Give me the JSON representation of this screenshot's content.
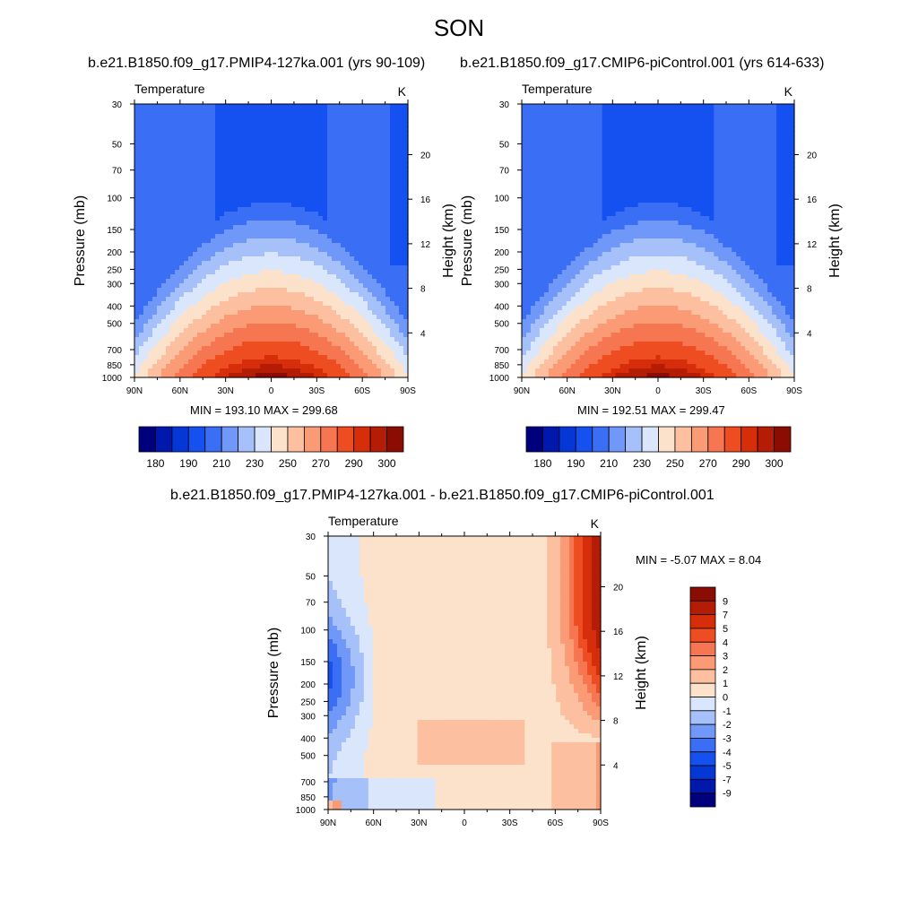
{
  "title": "SON",
  "palette": {
    "abs": [
      "#00007f",
      "#0018ab",
      "#0536d6",
      "#1550f0",
      "#3a6ef5",
      "#7098f8",
      "#a6c1fa",
      "#d9e6fc",
      "#fde2cb",
      "#fcc0a0",
      "#fa9b76",
      "#f57650",
      "#ee4d22",
      "#d62d0a",
      "#b51c06",
      "#8a0c02"
    ],
    "diff": [
      "#00007f",
      "#0018ab",
      "#0536d6",
      "#1550f0",
      "#3a6ef5",
      "#7098f8",
      "#a6c1fa",
      "#d9e6fc",
      "#fde2cb",
      "#fcc0a0",
      "#fa9b76",
      "#f57650",
      "#ee4d22",
      "#d62d0a",
      "#b51c06",
      "#8a0c02"
    ]
  },
  "chart_data": [
    {
      "type": "heatmap",
      "panel": "left",
      "title": "b.e21.B1850.f09_g17.PMIP4-127ka.001 (yrs 90-109)",
      "left_label": "Temperature",
      "right_label": "K",
      "ylabel": "Pressure (mb)",
      "ylabel_right": "Height (km)",
      "stats": "MIN = 193.10  MAX = 299.68",
      "min": 193.1,
      "max": 299.68,
      "lat_ticks": [
        "90N",
        "60N",
        "30N",
        "0",
        "30S",
        "60S",
        "90S"
      ],
      "lat_values": [
        90,
        60,
        30,
        0,
        -30,
        -60,
        -90
      ],
      "p_ticks": [
        "30",
        "50",
        "70",
        "100",
        "150",
        "200",
        "250",
        "300",
        "400",
        "500",
        "700",
        "850",
        "1000"
      ],
      "p_values": [
        30,
        50,
        70,
        100,
        150,
        200,
        250,
        300,
        400,
        500,
        700,
        850,
        1000
      ],
      "z_ticks": [
        "20",
        "16",
        "12",
        "8",
        "4"
      ],
      "z_values": [
        20,
        16,
        12,
        8,
        4
      ],
      "levels": [
        180,
        185,
        190,
        200,
        210,
        220,
        230,
        240,
        250,
        260,
        270,
        280,
        290,
        295,
        300
      ],
      "colorbar_labels": [
        "180",
        "190",
        "210",
        "230",
        "250",
        "270",
        "290",
        "300"
      ],
      "variant": 0
    },
    {
      "type": "heatmap",
      "panel": "right",
      "title": "b.e21.B1850.f09_g17.CMIP6-piControl.001 (yrs 614-633)",
      "left_label": "Temperature",
      "right_label": "K",
      "ylabel": "Pressure (mb)",
      "ylabel_right": "Height (km)",
      "stats": "MIN = 192.51  MAX = 299.47",
      "min": 192.51,
      "max": 299.47,
      "lat_ticks": [
        "90N",
        "60N",
        "30N",
        "0",
        "30S",
        "60S",
        "90S"
      ],
      "lat_values": [
        90,
        60,
        30,
        0,
        -30,
        -60,
        -90
      ],
      "p_ticks": [
        "30",
        "50",
        "70",
        "100",
        "150",
        "200",
        "250",
        "300",
        "400",
        "500",
        "700",
        "850",
        "1000"
      ],
      "p_values": [
        30,
        50,
        70,
        100,
        150,
        200,
        250,
        300,
        400,
        500,
        700,
        850,
        1000
      ],
      "z_ticks": [
        "20",
        "16",
        "12",
        "8",
        "4"
      ],
      "z_values": [
        20,
        16,
        12,
        8,
        4
      ],
      "levels": [
        180,
        185,
        190,
        200,
        210,
        220,
        230,
        240,
        250,
        260,
        270,
        280,
        290,
        295,
        300
      ],
      "colorbar_labels": [
        "180",
        "190",
        "210",
        "230",
        "250",
        "270",
        "290",
        "300"
      ],
      "variant": 1
    },
    {
      "type": "heatmap",
      "panel": "diff",
      "title": "b.e21.B1850.f09_g17.PMIP4-127ka.001 - b.e21.B1850.f09_g17.CMIP6-piControl.001",
      "left_label": "Temperature",
      "right_label": "K",
      "ylabel": "Pressure (mb)",
      "ylabel_right": "Height (km)",
      "stats": "MIN =  -5.07  MAX =   8.04",
      "min": -5.07,
      "max": 8.04,
      "lat_ticks": [
        "90N",
        "60N",
        "30N",
        "0",
        "30S",
        "60S",
        "90S"
      ],
      "lat_values": [
        90,
        60,
        30,
        0,
        -30,
        -60,
        -90
      ],
      "p_ticks": [
        "30",
        "50",
        "70",
        "100",
        "150",
        "200",
        "250",
        "300",
        "400",
        "500",
        "700",
        "850",
        "1000"
      ],
      "p_values": [
        30,
        50,
        70,
        100,
        150,
        200,
        250,
        300,
        400,
        500,
        700,
        850,
        1000
      ],
      "z_ticks": [
        "20",
        "16",
        "12",
        "8",
        "4"
      ],
      "z_values": [
        20,
        16,
        12,
        8,
        4
      ],
      "levels": [
        -9,
        -7,
        -5,
        -4,
        -3,
        -2,
        -1,
        0,
        1,
        2,
        3,
        4,
        5,
        7,
        9
      ],
      "colorbar_labels": [
        "9",
        "7",
        "5",
        "4",
        "3",
        "2",
        "1",
        "0",
        "-1",
        "-2",
        "-3",
        "-4",
        "-5",
        "-7",
        "-9"
      ]
    }
  ]
}
